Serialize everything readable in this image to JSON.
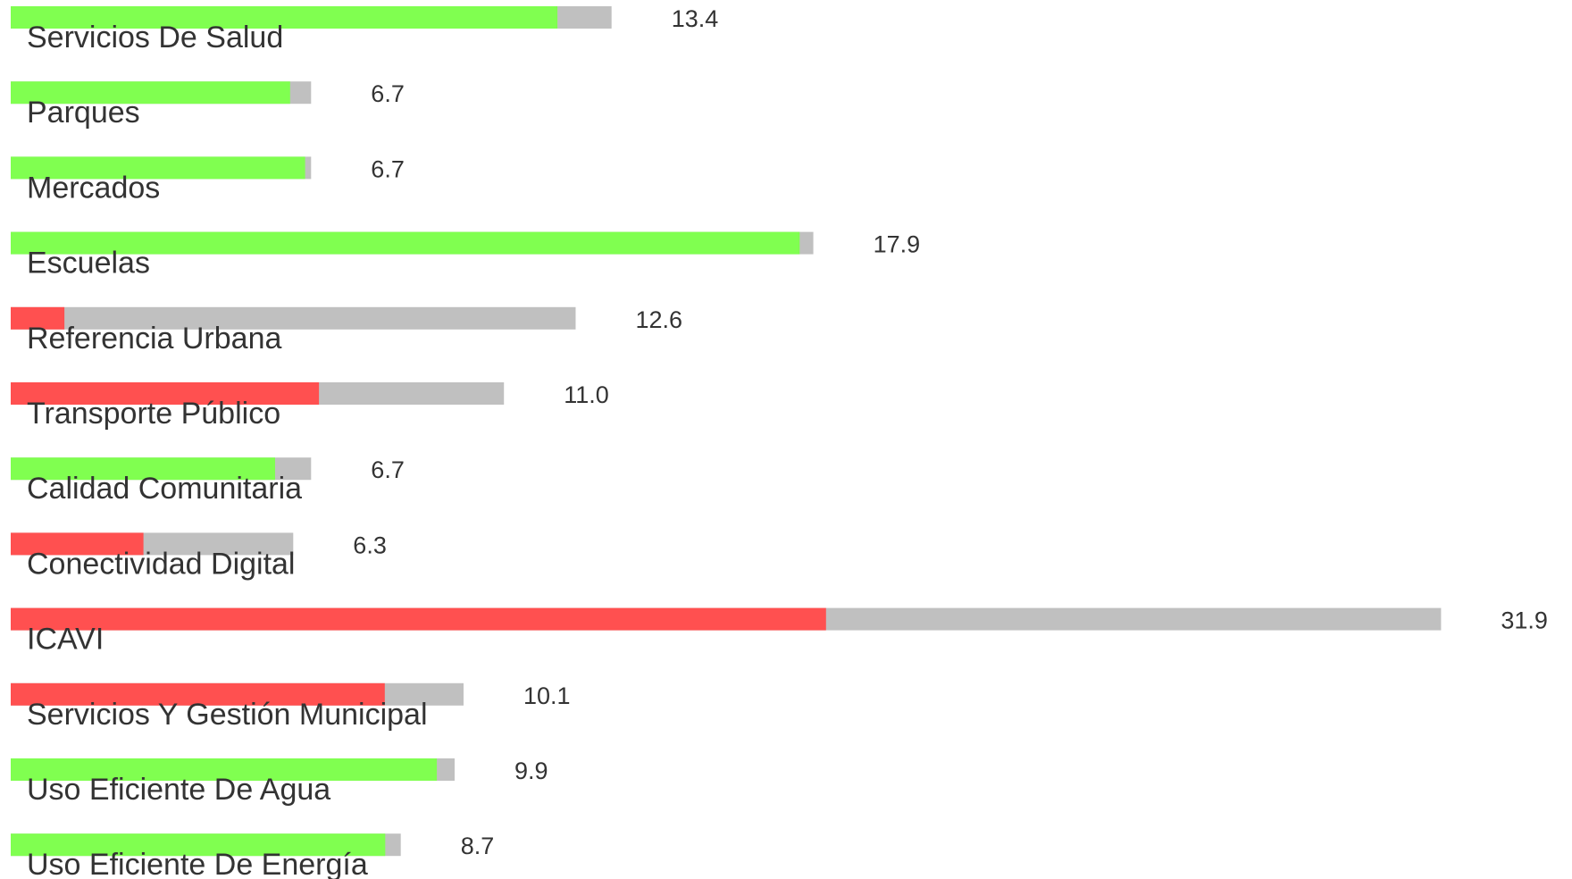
{
  "chart_data": {
    "type": "bar",
    "orientation": "horizontal",
    "title": "",
    "xlabel": "",
    "ylabel": "",
    "xlim": [
      0,
      32
    ],
    "grid": false,
    "legend": "none",
    "colors": {
      "background_bar": "#c0c0c0",
      "good": "#80ff50",
      "bad": "#ff5050",
      "text": "#333333"
    },
    "rows": [
      {
        "category": "Servicios De Salud",
        "value": 13.4,
        "value_label": "13.4",
        "fill_fraction": 0.91,
        "status": "good"
      },
      {
        "category": "Parques",
        "value": 6.7,
        "value_label": "6.7",
        "fill_fraction": 0.93,
        "status": "good"
      },
      {
        "category": "Mercados",
        "value": 6.7,
        "value_label": "6.7",
        "fill_fraction": 0.98,
        "status": "good"
      },
      {
        "category": "Escuelas",
        "value": 17.9,
        "value_label": "17.9",
        "fill_fraction": 0.983,
        "status": "good"
      },
      {
        "category": "Referencia Urbana",
        "value": 12.6,
        "value_label": "12.6",
        "fill_fraction": 0.095,
        "status": "bad"
      },
      {
        "category": "Transporte Público",
        "value": 11.0,
        "value_label": "11.0",
        "fill_fraction": 0.625,
        "status": "bad"
      },
      {
        "category": "Calidad Comunitaria",
        "value": 6.7,
        "value_label": "6.7",
        "fill_fraction": 0.88,
        "status": "good"
      },
      {
        "category": "Conectividad Digital",
        "value": 6.3,
        "value_label": "6.3",
        "fill_fraction": 0.47,
        "status": "bad"
      },
      {
        "category": "ICAVI",
        "value": 31.9,
        "value_label": "31.9",
        "fill_fraction": 0.57,
        "status": "bad"
      },
      {
        "category": "Servicios Y Gestión Municipal",
        "value": 10.1,
        "value_label": "10.1",
        "fill_fraction": 0.826,
        "status": "bad"
      },
      {
        "category": "Uso Eficiente De Agua",
        "value": 9.9,
        "value_label": "9.9",
        "fill_fraction": 0.96,
        "status": "good"
      },
      {
        "category": "Uso Eficiente De Energía",
        "value": 8.7,
        "value_label": "8.7",
        "fill_fraction": 0.96,
        "status": "good"
      }
    ]
  }
}
